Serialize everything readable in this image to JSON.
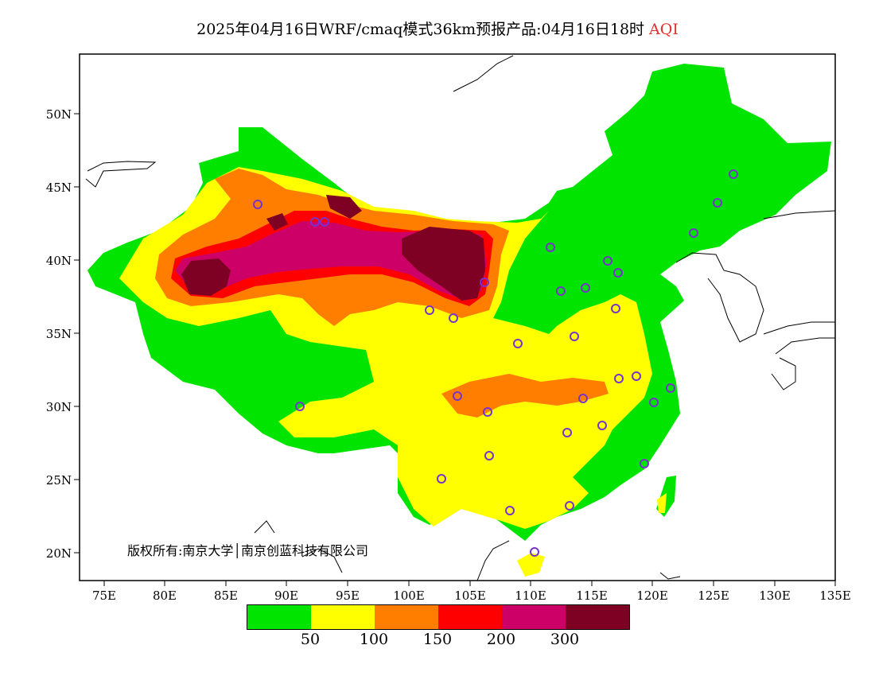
{
  "title": {
    "text": "2025年04月16日WRF/cmaq模式36km预报产品:04月16日18时",
    "highlight": "AQI",
    "highlight_color": "#e03030"
  },
  "axes": {
    "lat_labels": [
      "50N",
      "45N",
      "40N",
      "35N",
      "30N",
      "25N",
      "20N"
    ],
    "lon_labels": [
      "75E",
      "80E",
      "85E",
      "90E",
      "95E",
      "100E",
      "105E",
      "110E",
      "115E",
      "120E",
      "125E",
      "130E",
      "135E"
    ]
  },
  "copyright": "版权所有:南京大学│南京创蓝科技有限公司",
  "colorbar": {
    "colors": [
      "#00e400",
      "#ffff00",
      "#ff7e00",
      "#ff0000",
      "#cc0066",
      "#7e0023"
    ],
    "labels": [
      "50",
      "100",
      "150",
      "200",
      "300"
    ]
  },
  "station_marker_color": "#7733cc"
}
